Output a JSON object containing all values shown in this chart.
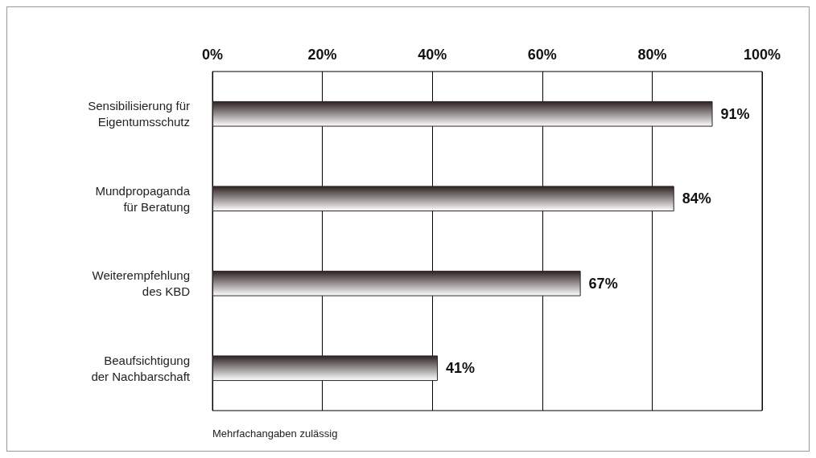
{
  "chart_data": {
    "type": "bar",
    "orientation": "horizontal",
    "categories": [
      "Sensibilisierung für\nEigentumsschutz",
      "Mundpropaganda\nfür Beratung",
      "Weiterempfehlung\ndes KBD",
      "Beaufsichtigung\nder Nachbarschaft"
    ],
    "values": [
      91,
      84,
      67,
      41
    ],
    "value_labels": [
      "91%",
      "84%",
      "67%",
      "41%"
    ],
    "color": "#2e2222",
    "xlim": [
      0,
      100
    ],
    "xticks": [
      {
        "value": 0,
        "label": "0%"
      },
      {
        "value": 20,
        "label": "20%"
      },
      {
        "value": 40,
        "label": "40%"
      },
      {
        "value": 60,
        "label": "60%"
      },
      {
        "value": 80,
        "label": "80%"
      },
      {
        "value": 100,
        "label": "100%"
      }
    ],
    "grid": "x",
    "annotations": [
      "Mehrfachangaben zulässig"
    ]
  }
}
